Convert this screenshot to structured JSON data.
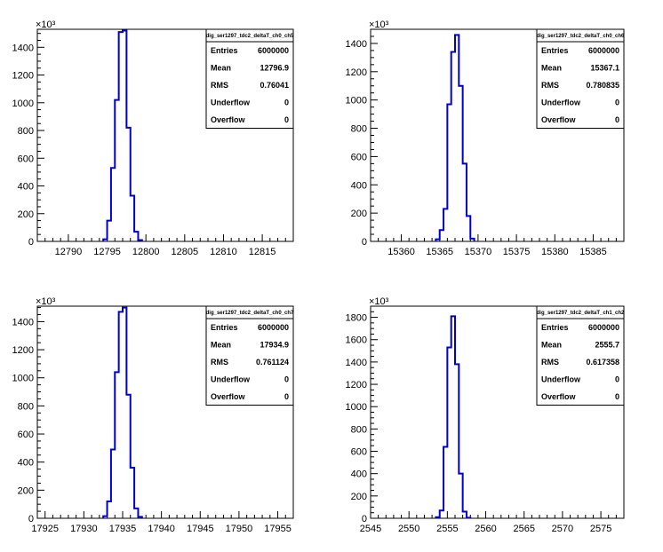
{
  "chart_data": [
    {
      "type": "histogram",
      "title": "dig_ser1297_tdc2_deltaT_ch0_ch5",
      "y_multiplier": "×10³",
      "xlim": [
        12786,
        12819
      ],
      "ylim": [
        0,
        1530
      ],
      "x_ticks": [
        12790,
        12795,
        12800,
        12805,
        12810,
        12815
      ],
      "y_ticks": [
        0,
        200,
        400,
        600,
        800,
        1000,
        1200,
        1400
      ],
      "bin_width": 0.5,
      "bins_x": [
        12794.5,
        12795,
        12795.5,
        12796,
        12796.5,
        12797,
        12797.5,
        12798,
        12798.5,
        12799
      ],
      "values": [
        15,
        150,
        530,
        1020,
        1510,
        1520,
        820,
        330,
        70,
        10
      ],
      "stats": {
        "Entries": "6000000",
        "Mean": "12796.9",
        "RMS": "0.76041",
        "Underflow": "0",
        "Overflow": "0"
      },
      "line_color": "#0000cc"
    },
    {
      "type": "histogram",
      "title": "dig_ser1297_tdc2_deltaT_ch0_ch6",
      "y_multiplier": "×10³",
      "xlim": [
        15356,
        15389
      ],
      "ylim": [
        0,
        1500
      ],
      "x_ticks": [
        15360,
        15365,
        15370,
        15375,
        15380,
        15385
      ],
      "y_ticks": [
        0,
        200,
        400,
        600,
        800,
        1000,
        1200,
        1400
      ],
      "bin_width": 0.5,
      "bins_x": [
        15364.5,
        15365,
        15365.5,
        15366,
        15366.5,
        15367,
        15367.5,
        15368,
        15368.5,
        15369
      ],
      "values": [
        15,
        80,
        230,
        970,
        1340,
        1460,
        1100,
        550,
        180,
        20
      ],
      "stats": {
        "Entries": "6000000",
        "Mean": "15367.1",
        "RMS": "0.780835",
        "Underflow": "0",
        "Overflow": "0"
      },
      "line_color": "#0000cc"
    },
    {
      "type": "histogram",
      "title": "dig_ser1297_tdc2_deltaT_ch0_ch7",
      "y_multiplier": "×10³",
      "xlim": [
        17924,
        17957
      ],
      "ylim": [
        0,
        1510
      ],
      "x_ticks": [
        17925,
        17930,
        17935,
        17940,
        17945,
        17950,
        17955
      ],
      "y_ticks": [
        0,
        200,
        400,
        600,
        800,
        1000,
        1200,
        1400
      ],
      "bin_width": 0.5,
      "bins_x": [
        17932.5,
        17933,
        17933.5,
        17934,
        17934.5,
        17935,
        17935.5,
        17936,
        17936.5,
        17937
      ],
      "values": [
        15,
        120,
        490,
        1040,
        1470,
        1500,
        880,
        360,
        70,
        10
      ],
      "stats": {
        "Entries": "6000000",
        "Mean": "17934.9",
        "RMS": "0.761124",
        "Underflow": "0",
        "Overflow": "0"
      },
      "line_color": "#0000cc"
    },
    {
      "type": "histogram",
      "title": "dig_ser1297_tdc2_deltaT_ch1_ch2",
      "y_multiplier": "×10³",
      "xlim": [
        2545,
        2578
      ],
      "ylim": [
        0,
        1900
      ],
      "x_ticks": [
        2545,
        2550,
        2555,
        2560,
        2565,
        2570,
        2575
      ],
      "y_ticks": [
        0,
        200,
        400,
        600,
        800,
        1000,
        1200,
        1400,
        1600,
        1800
      ],
      "bin_width": 0.5,
      "bins_x": [
        2553.5,
        2554,
        2554.5,
        2555,
        2555.5,
        2556,
        2556.5,
        2557,
        2557.5
      ],
      "values": [
        10,
        70,
        640,
        1530,
        1810,
        1380,
        400,
        60,
        5
      ],
      "stats": {
        "Entries": "6000000",
        "Mean": "2555.7",
        "RMS": "0.617358",
        "Underflow": "0",
        "Overflow": "0"
      },
      "line_color": "#0000cc"
    }
  ]
}
